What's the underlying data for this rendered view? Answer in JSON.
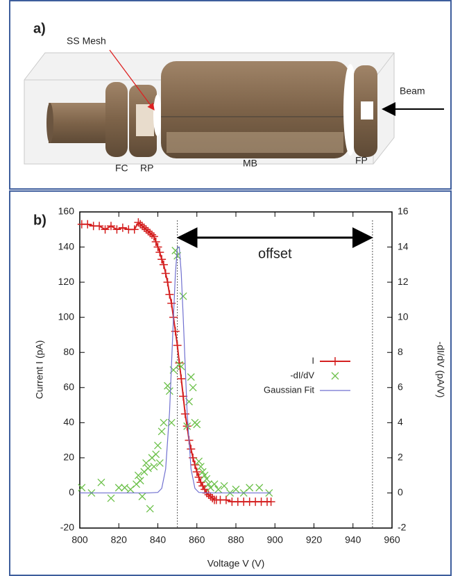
{
  "panel_a": {
    "label": "a)",
    "mesh_label": "SS Mesh",
    "beam_label": "Beam",
    "part_labels": [
      "FC",
      "RP",
      "MB",
      "FP"
    ]
  },
  "chart_data": {
    "type": "line",
    "panel_label": "b)",
    "x_label": "Voltage V (V)",
    "y_label": "Current I (pA)",
    "y2_label": "-dI/dV (pA/V)",
    "xlim": [
      800,
      960
    ],
    "xticks": [
      800,
      820,
      840,
      860,
      880,
      900,
      920,
      940,
      960
    ],
    "ylim": [
      -20,
      160
    ],
    "yticks": [
      -20,
      0,
      20,
      40,
      60,
      80,
      100,
      120,
      140,
      160
    ],
    "y2lim": [
      -2,
      16
    ],
    "y2ticks": [
      -2,
      0,
      2,
      4,
      6,
      8,
      10,
      12,
      14,
      16
    ],
    "legend": "right",
    "vlines": [
      850,
      950
    ],
    "annotation": "offset",
    "series": [
      {
        "name": "I",
        "color": "#d42020",
        "line": true,
        "marker": "+",
        "x": [
          801,
          804,
          807,
          810,
          813,
          816,
          819,
          822,
          825,
          828,
          830,
          831,
          832,
          833,
          834,
          835,
          836,
          837,
          838,
          839,
          840,
          841,
          842,
          843,
          844,
          845,
          846,
          847,
          848,
          849,
          850,
          851,
          852,
          853,
          854,
          855,
          856,
          857,
          858,
          859,
          860,
          861,
          862,
          863,
          864,
          865,
          866,
          867,
          868,
          869,
          870,
          872,
          875,
          878,
          881,
          884,
          887,
          890,
          893,
          896,
          898
        ],
        "values": [
          153,
          153,
          152,
          152,
          150,
          152,
          150,
          151,
          150,
          150,
          154,
          153,
          152,
          151,
          150,
          149,
          148,
          147,
          146,
          143,
          140,
          137,
          133,
          130,
          125,
          120,
          113,
          108,
          100,
          92,
          84,
          74,
          65,
          55,
          45,
          38,
          30,
          25,
          20,
          16,
          12,
          9,
          6,
          4,
          2,
          0,
          -1,
          -2,
          -3,
          -4,
          -4,
          -4,
          -4,
          -5,
          -5,
          -5,
          -5,
          -5,
          -5,
          -5,
          -5
        ]
      },
      {
        "name": "-dI/dV",
        "color": "#6cc04a",
        "line": false,
        "marker": "x",
        "axis": "y2",
        "x": [
          801,
          806,
          811,
          816,
          820,
          823,
          826,
          829,
          830,
          831,
          832,
          833,
          834,
          835,
          836,
          837,
          838,
          839,
          840,
          841,
          842,
          843,
          845,
          846,
          847,
          848,
          849,
          850,
          851,
          852,
          853,
          855,
          856,
          857,
          858,
          859,
          860,
          861,
          862,
          863,
          864,
          865,
          866,
          867,
          869,
          871,
          874,
          877,
          880,
          884,
          887,
          892,
          897
        ],
        "values": [
          0.3,
          0,
          0.6,
          -0.3,
          0.3,
          0.3,
          0.2,
          0.5,
          1.0,
          0.7,
          -0.2,
          1.2,
          1.7,
          1.4,
          -0.9,
          2.0,
          1.5,
          2.2,
          2.7,
          1.7,
          3.5,
          4.0,
          6.1,
          5.8,
          4.0,
          7.0,
          13.8,
          13.5,
          7.3,
          7.2,
          11.2,
          3.8,
          5.2,
          6.6,
          6.0,
          4.0,
          3.9,
          1.8,
          1.5,
          1.2,
          1.0,
          0.8,
          0.5,
          0.3,
          0.5,
          0.2,
          0.4,
          0,
          0.2,
          0,
          0.3,
          0.3,
          0
        ]
      },
      {
        "name": "Gaussian Fit",
        "color": "#7070d0",
        "line": true,
        "marker": "none",
        "axis": "y2",
        "x": [
          800,
          835,
          840,
          842,
          844,
          846,
          848,
          849,
          850,
          851,
          852,
          853,
          855,
          857,
          859,
          861,
          865,
          898
        ],
        "values": [
          0,
          0,
          0.03,
          0.26,
          1.36,
          4.6,
          10.0,
          12.5,
          14.0,
          14.0,
          12.5,
          10.0,
          4.6,
          1.36,
          0.26,
          0.03,
          0,
          0
        ]
      }
    ]
  }
}
